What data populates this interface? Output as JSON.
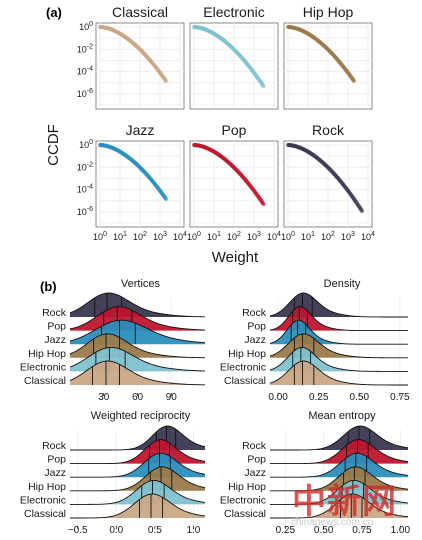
{
  "figure": {
    "panel_a_label": "(a)",
    "panel_b_label": "(b)",
    "genre_colors": {
      "Classical": "#c9a886",
      "Electronic": "#7fc1cf",
      "Hip Hop": "#9a7a4a",
      "Jazz": "#2a8fbd",
      "Pop": "#c0152f",
      "Rock": "#3a3850"
    },
    "axis_color": "#1a1a1a",
    "grid_color": "#ebebeb",
    "panel_border": "#6b6b6b"
  },
  "chart_data": [
    {
      "type": "scatter",
      "id": "ccdf",
      "title": "",
      "xlabel": "Weight",
      "ylabel": "CCDF",
      "x_scale": "log10",
      "y_scale": "log10",
      "xlim": [
        1,
        10000
      ],
      "ylim": [
        1e-07,
        1
      ],
      "xticks": [
        "10^0",
        "10^1",
        "10^2",
        "10^3",
        "10^4"
      ],
      "yticks": [
        "10^0",
        "10^-2",
        "10^-4",
        "10^-6"
      ],
      "grid": true,
      "panels": [
        {
          "name": "Classical",
          "x_max": 2000
        },
        {
          "name": "Electronic",
          "x_max": 3000
        },
        {
          "name": "Hip Hop",
          "x_max": 2000
        },
        {
          "name": "Jazz",
          "x_max": 2000
        },
        {
          "name": "Pop",
          "x_max": 3000
        },
        {
          "name": "Rock",
          "x_max": 5000
        }
      ]
    },
    {
      "type": "area",
      "id": "vertices",
      "title": "Vertices",
      "categories": [
        "Rock",
        "Pop",
        "Jazz",
        "Hip Hop",
        "Electronic",
        "Classical"
      ],
      "xlim": [
        0,
        120
      ],
      "xticks": [
        "30",
        "60",
        "90"
      ],
      "quantile_lines": [
        {
          "name": "Rock",
          "q": [
            22,
            33,
            46
          ]
        },
        {
          "name": "Pop",
          "q": [
            30,
            42,
            55
          ]
        },
        {
          "name": "Jazz",
          "q": [
            28,
            44,
            58
          ]
        },
        {
          "name": "Hip Hop",
          "q": [
            21,
            32,
            44
          ]
        },
        {
          "name": "Electronic",
          "q": [
            23,
            35,
            49
          ]
        },
        {
          "name": "Classical",
          "q": [
            20,
            32,
            44
          ]
        }
      ]
    },
    {
      "type": "area",
      "id": "density",
      "title": "Density",
      "categories": [
        "Rock",
        "Pop",
        "Jazz",
        "Hip Hop",
        "Electronic",
        "Classical"
      ],
      "xlim": [
        -0.05,
        0.8
      ],
      "xticks": [
        "0.00",
        "0.25",
        "0.50",
        "0.75"
      ],
      "quantile_lines": [
        {
          "name": "Rock",
          "q": [
            0.1,
            0.15,
            0.21
          ]
        },
        {
          "name": "Pop",
          "q": [
            0.09,
            0.13,
            0.18
          ]
        },
        {
          "name": "Jazz",
          "q": [
            0.08,
            0.12,
            0.17
          ]
        },
        {
          "name": "Hip Hop",
          "q": [
            0.1,
            0.15,
            0.22
          ]
        },
        {
          "name": "Electronic",
          "q": [
            0.09,
            0.14,
            0.2
          ]
        },
        {
          "name": "Classical",
          "q": [
            0.1,
            0.15,
            0.22
          ]
        }
      ]
    },
    {
      "type": "area",
      "id": "weighted-reciprocity",
      "title": "Weighted reciprocity",
      "categories": [
        "Rock",
        "Pop",
        "Jazz",
        "Hip Hop",
        "Electronic",
        "Classical"
      ],
      "xlim": [
        -0.6,
        1.15
      ],
      "xticks": [
        "−0.5",
        "0.0",
        "0.5",
        "1.0"
      ],
      "quantile_lines": [
        {
          "name": "Rock",
          "q": [
            0.52,
            0.65,
            0.77
          ]
        },
        {
          "name": "Pop",
          "q": [
            0.43,
            0.56,
            0.69
          ]
        },
        {
          "name": "Jazz",
          "q": [
            0.42,
            0.56,
            0.7
          ]
        },
        {
          "name": "Hip Hop",
          "q": [
            0.44,
            0.58,
            0.72
          ]
        },
        {
          "name": "Electronic",
          "q": [
            0.33,
            0.47,
            0.62
          ]
        },
        {
          "name": "Classical",
          "q": [
            0.3,
            0.45,
            0.6
          ]
        }
      ]
    },
    {
      "type": "area",
      "id": "mean-entropy",
      "title": "Mean entropy",
      "categories": [
        "Rock",
        "Pop",
        "Jazz",
        "Hip Hop",
        "Electronic",
        "Classical"
      ],
      "xlim": [
        0.15,
        1.05
      ],
      "xticks": [
        "0.25",
        "0.50",
        "0.75",
        "1.00"
      ],
      "quantile_lines": [
        {
          "name": "Rock",
          "q": [
            0.66,
            0.73,
            0.8
          ]
        },
        {
          "name": "Pop",
          "q": [
            0.65,
            0.72,
            0.79
          ]
        },
        {
          "name": "Jazz",
          "q": [
            0.64,
            0.71,
            0.78
          ]
        },
        {
          "name": "Hip Hop",
          "q": [
            0.63,
            0.7,
            0.77
          ]
        },
        {
          "name": "Electronic",
          "q": [
            0.62,
            0.69,
            0.76
          ]
        },
        {
          "name": "Classical",
          "q": [
            0.61,
            0.68,
            0.75
          ]
        }
      ]
    }
  ],
  "watermark": {
    "logo_text": "中新网",
    "url_text": "chinanews.com.cn"
  }
}
